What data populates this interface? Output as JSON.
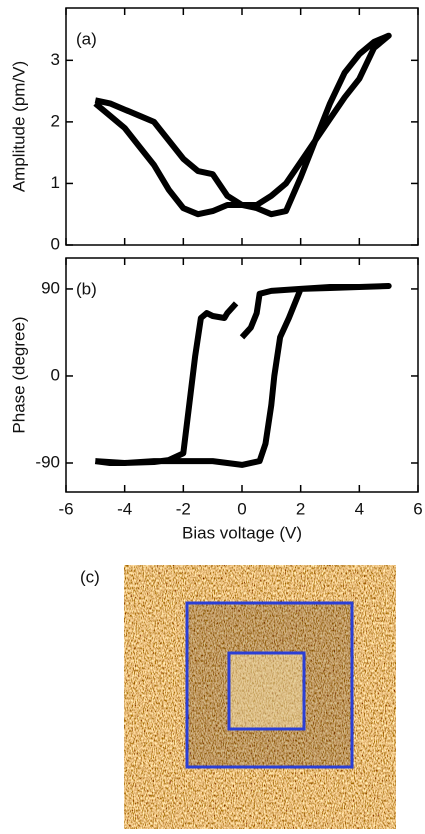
{
  "chart_data": [
    {
      "type": "line",
      "annotation": "(a)",
      "ylabel": "Amplitude (pm/V)",
      "x": [
        -5,
        -4.5,
        -4,
        -3.5,
        -3,
        -2.5,
        -2,
        -1.5,
        -1,
        -0.5,
        0,
        0.5,
        1,
        1.5,
        2,
        2.5,
        3,
        3.5,
        4,
        4.5,
        5,
        4.5,
        4,
        3.5,
        3,
        2.5,
        2,
        1.5,
        1,
        0.5,
        0,
        -0.5,
        -1,
        -1.5,
        -2,
        -2.5,
        -3,
        -3.5,
        -4,
        -4.5,
        -5
      ],
      "series": [
        {
          "color": "#000000",
          "values": [
            2.35,
            2.3,
            2.2,
            2.1,
            2.0,
            1.7,
            1.4,
            1.2,
            1.15,
            0.8,
            0.65,
            0.6,
            0.5,
            0.55,
            1.1,
            1.7,
            2.3,
            2.8,
            3.1,
            3.3,
            3.4,
            3.2,
            2.7,
            2.4,
            2.05,
            1.7,
            1.35,
            1.0,
            0.8,
            0.65,
            0.65,
            0.65,
            0.55,
            0.5,
            0.6,
            0.9,
            1.3,
            1.6,
            1.9,
            2.1,
            2.3
          ]
        }
      ],
      "xlim": [
        -6,
        6
      ],
      "ylim": [
        0,
        3.85
      ],
      "xticks": [
        -6,
        -4,
        -2,
        0,
        2,
        4,
        6
      ],
      "yticks": [
        0,
        1,
        2,
        3
      ]
    },
    {
      "type": "line",
      "annotation": "(b)",
      "ylabel": "Phase (degree)",
      "xlabel": "Bias voltage (V)",
      "x": [
        -5,
        -4.5,
        -4,
        -3,
        -2.5,
        -2,
        -1.8,
        -1.6,
        -1.4,
        -1.2,
        -1,
        -0.6,
        -0.5,
        -0.2,
        -0.1,
        0,
        0.3,
        0.5,
        0.6,
        1,
        2,
        3,
        4,
        5,
        4,
        3,
        2,
        1.6,
        1.3,
        1.1,
        1,
        0.8,
        0.6,
        0,
        -1,
        -2,
        -3,
        -4,
        -5
      ],
      "series": [
        {
          "color": "#000000",
          "values": [
            -88,
            -90,
            -90,
            -89,
            -87,
            -80,
            -30,
            20,
            60,
            65,
            62,
            60,
            65,
            75,
            null,
            40,
            50,
            65,
            85,
            88,
            90,
            92,
            92,
            93,
            92,
            91,
            90,
            60,
            40,
            0,
            -30,
            -70,
            -88,
            -92,
            -88,
            -88,
            -88,
            -90,
            -88
          ]
        }
      ],
      "xlim": [
        -6,
        6
      ],
      "ylim": [
        -120,
        122
      ],
      "xticks": [
        -6,
        -4,
        -2,
        0,
        2,
        4,
        6
      ],
      "yticks": [
        -90,
        0,
        90
      ]
    }
  ],
  "image_panel": {
    "label": "(c)"
  }
}
